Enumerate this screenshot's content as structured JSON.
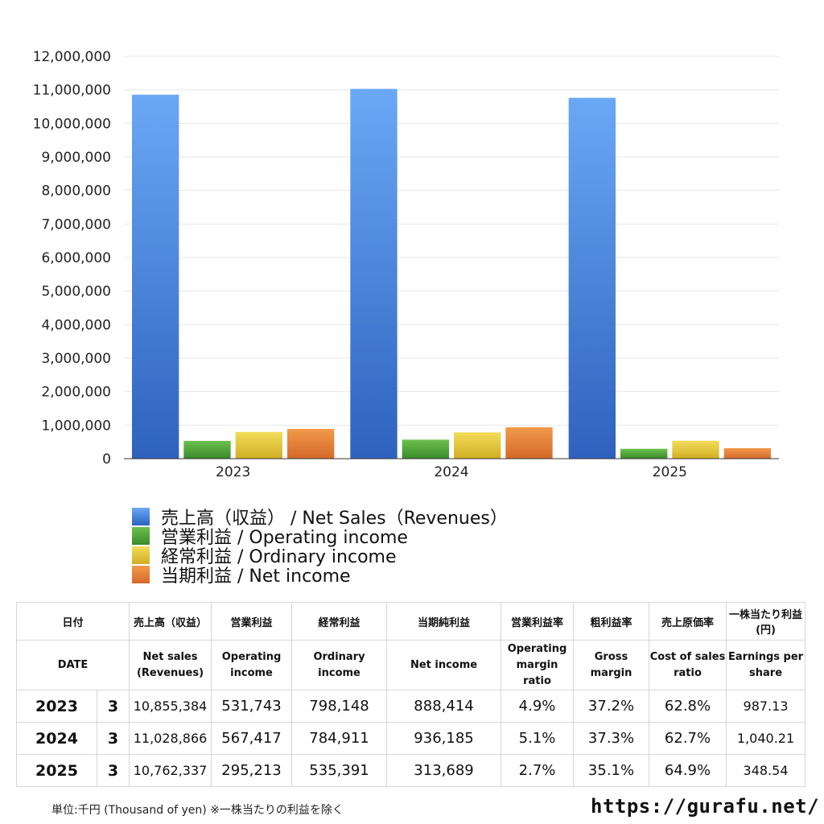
{
  "chart_data": {
    "type": "bar",
    "categories": [
      "2023",
      "2024",
      "2025"
    ],
    "series": [
      {
        "name": "売上高（収益） / Net Sales（Revenues）",
        "color": "#4a8de6",
        "values": [
          10855384,
          11028866,
          10762337
        ]
      },
      {
        "name": "営業利益 / Operating income",
        "color": "#4f9e3a",
        "values": [
          531743,
          567417,
          295213
        ]
      },
      {
        "name": "経常利益 / Ordinary income",
        "color": "#e0c23a",
        "values": [
          798148,
          784911,
          535391
        ]
      },
      {
        "name": "当期利益 / Net income",
        "color": "#e07a2e",
        "values": [
          888414,
          936185,
          313689
        ]
      }
    ],
    "ylim": [
      0,
      12000000
    ],
    "yticks": [
      "0",
      "1,000,000",
      "2,000,000",
      "3,000,000",
      "4,000,000",
      "5,000,000",
      "6,000,000",
      "7,000,000",
      "8,000,000",
      "9,000,000",
      "10,000,000",
      "11,000,000",
      "12,000,000"
    ],
    "grid": true,
    "legend_position": "bottom"
  },
  "table": {
    "header_jp": [
      "日付",
      "売上高（収益）",
      "営業利益",
      "経常利益",
      "当期純利益",
      "営業利益率",
      "粗利益率",
      "売上原価率",
      "一株当たり利益(円)"
    ],
    "header_en": [
      "DATE",
      "Net sales (Revenues)",
      "Operating income",
      "Ordinary income",
      "Net income",
      "Operating margin ratio",
      "Gross margin",
      "Cost of sales ratio",
      "Earnings per share"
    ],
    "rows": [
      {
        "year": "2023",
        "month": "3",
        "sales": "10,855,384",
        "operating": "531,743",
        "ordinary": "798,148",
        "net": "888,414",
        "op_margin": "4.9%",
        "gross": "37.2%",
        "cost": "62.8%",
        "eps": "987.13"
      },
      {
        "year": "2024",
        "month": "3",
        "sales": "11,028,866",
        "operating": "567,417",
        "ordinary": "784,911",
        "net": "936,185",
        "op_margin": "5.1%",
        "gross": "37.3%",
        "cost": "62.7%",
        "eps": "1,040.21"
      },
      {
        "year": "2025",
        "month": "3",
        "sales": "10,762,337",
        "operating": "295,213",
        "ordinary": "535,391",
        "net": "313,689",
        "op_margin": "2.7%",
        "gross": "35.1%",
        "cost": "64.9%",
        "eps": "348.54"
      }
    ]
  },
  "footnote": "単位:千円 (Thousand of yen) ※一株当たりの利益を除く",
  "site": "https://gurafu.net/"
}
